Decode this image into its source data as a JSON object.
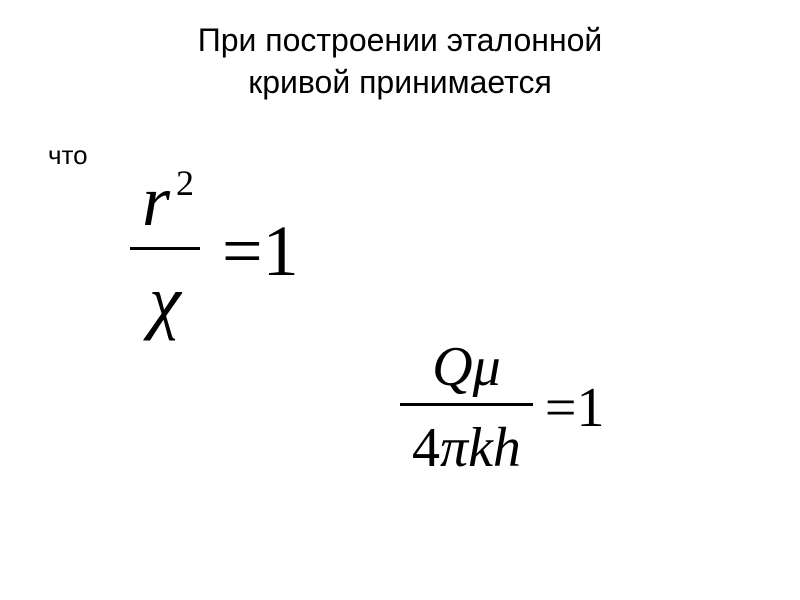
{
  "title_line1": "При построении эталонной",
  "title_line2": "кривой принимается",
  "subtitle": "что",
  "equation1": {
    "numerator_base": "r",
    "numerator_exp": "2",
    "denominator": "χ",
    "equals": "=",
    "rhs": "1"
  },
  "equation2": {
    "numerator_Q": "Q",
    "numerator_mu": "μ",
    "denominator_4": "4",
    "denominator_pi": "π",
    "denominator_k": "k",
    "denominator_h": "h",
    "equals": "=",
    "rhs": "1"
  },
  "styling": {
    "background_color": "#ffffff",
    "text_color": "#000000",
    "title_fontsize": 32,
    "subtitle_fontsize": 26,
    "eq1_fontsize": 72,
    "eq2_fontsize": 56,
    "font_family_text": "Arial, sans-serif",
    "font_family_math": "Times New Roman, serif",
    "fraction_line_width": 3
  }
}
